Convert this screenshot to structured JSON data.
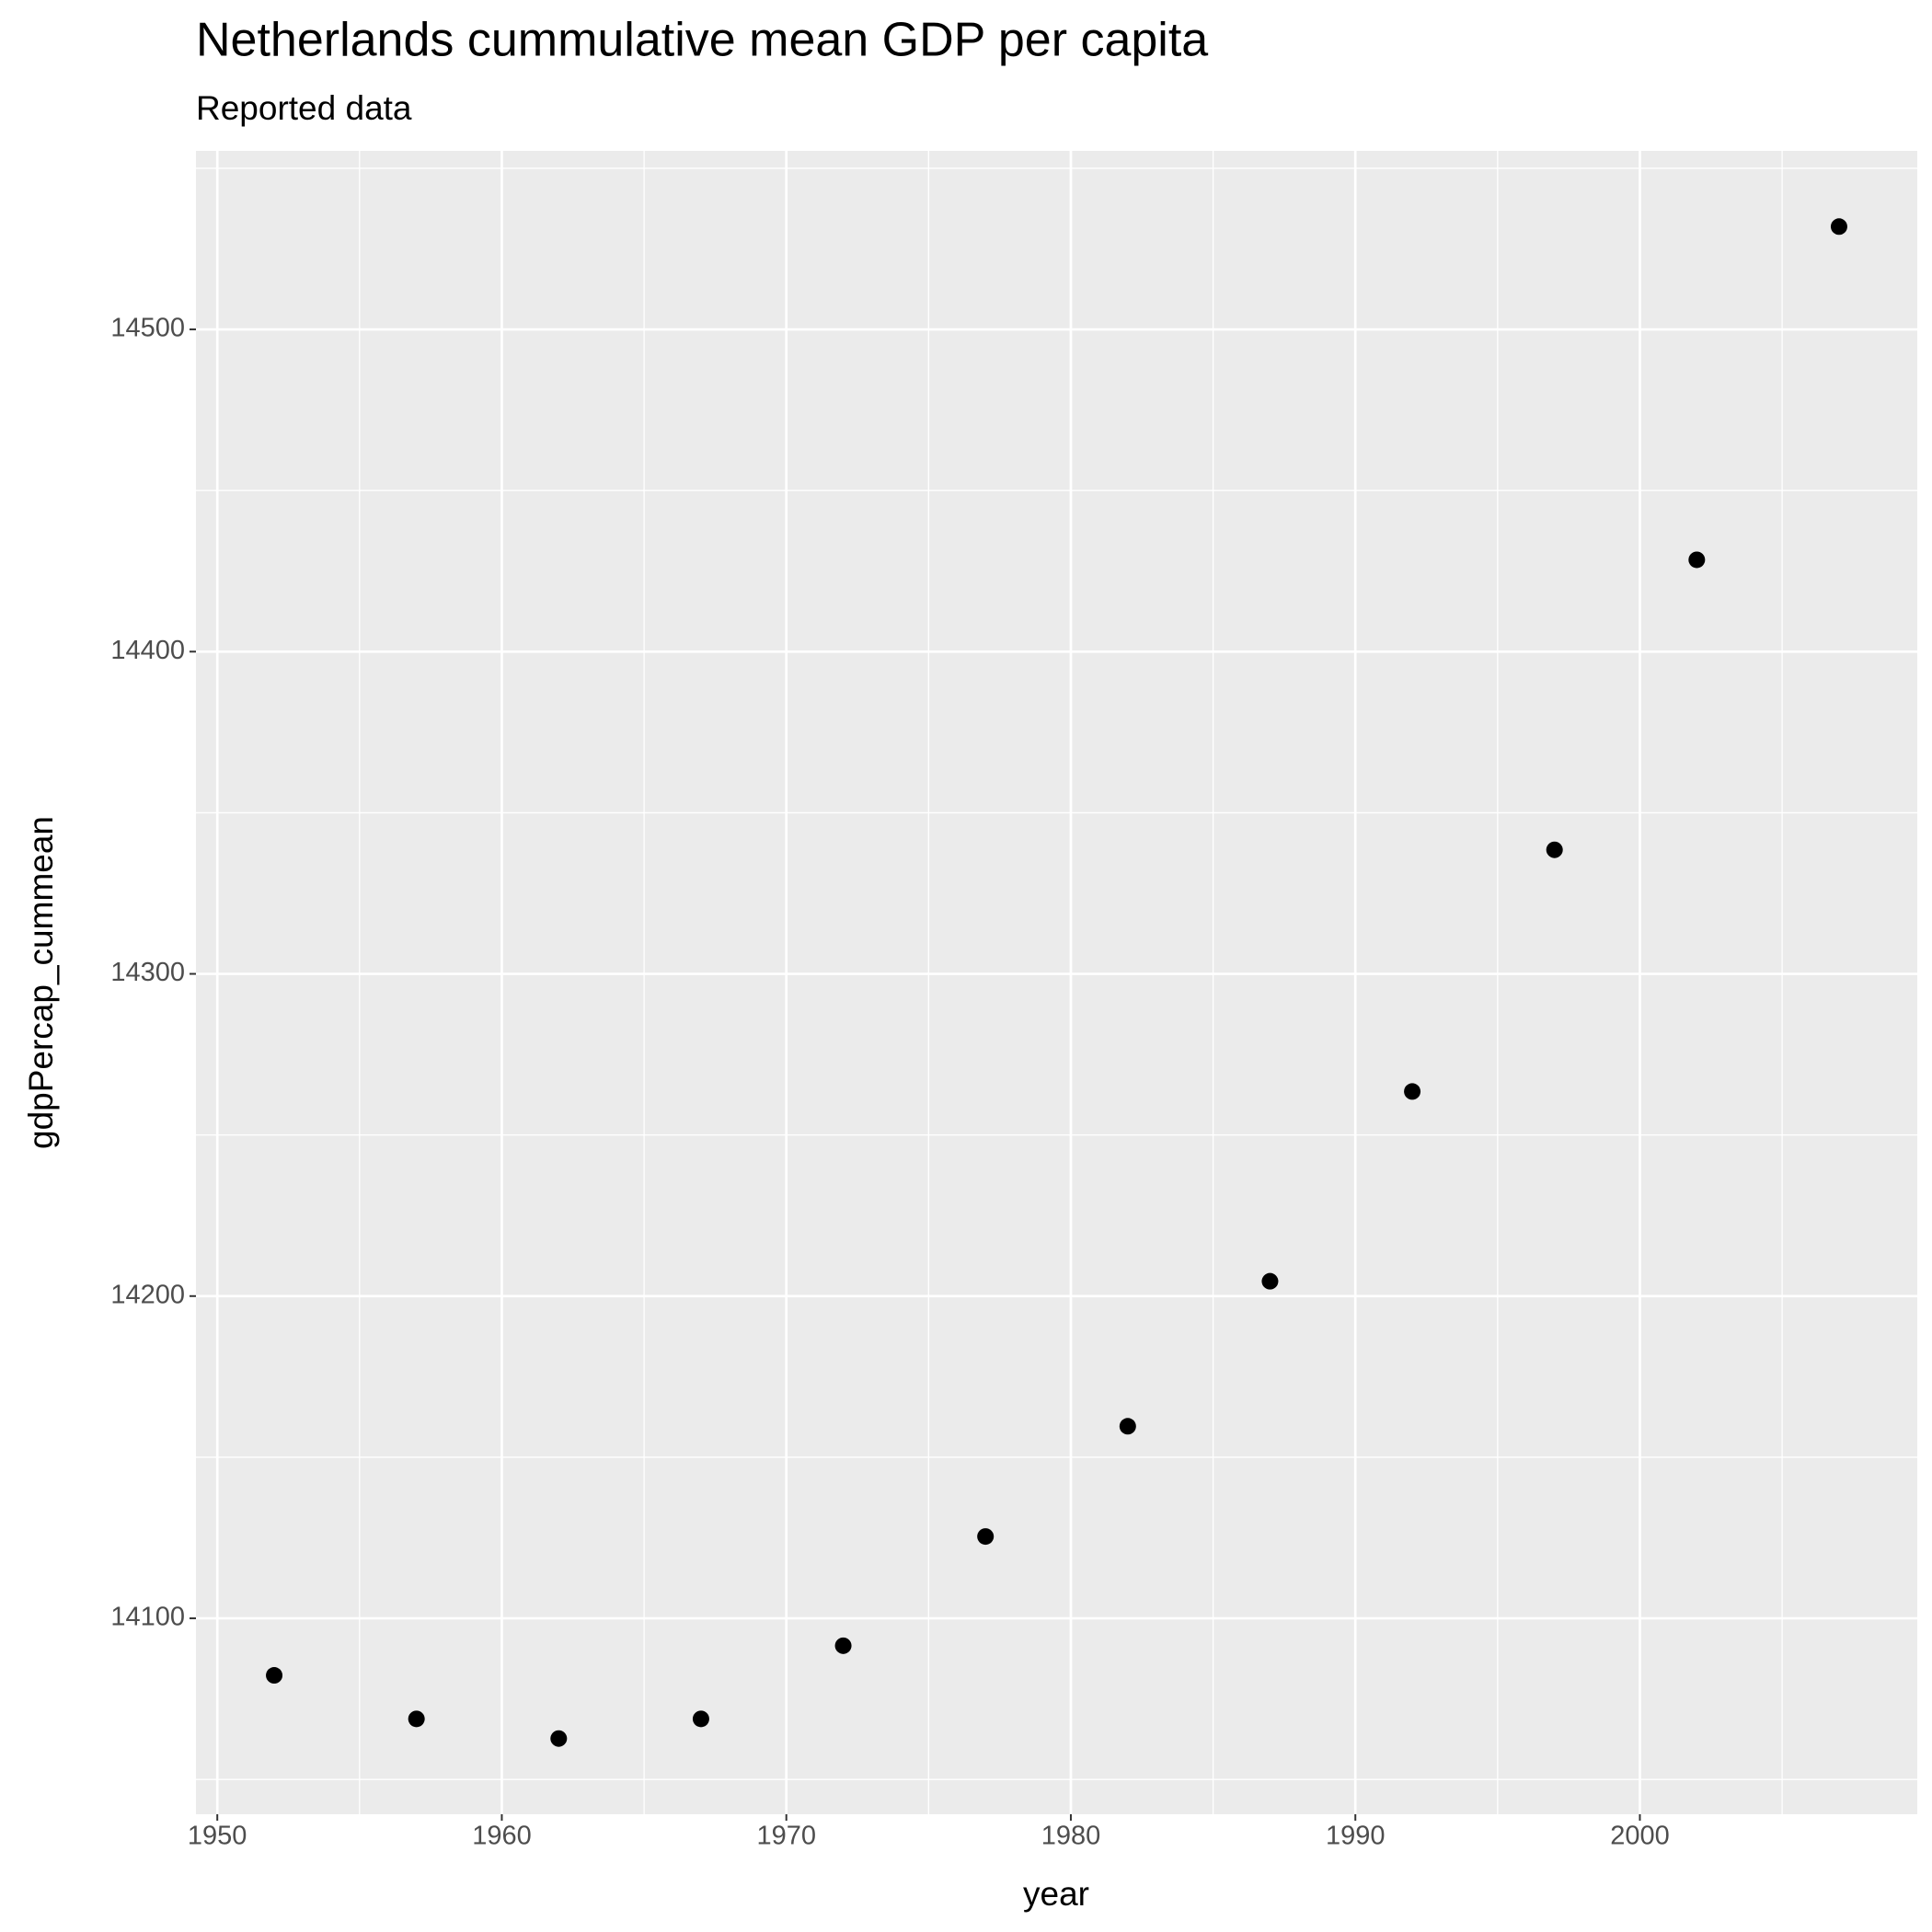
{
  "chart_data": {
    "type": "scatter",
    "title": "Netherlands  cummulative mean GDP per capita",
    "subtitle": "Reported data",
    "x_label": "year",
    "y_label": "gdpPercap_cummean",
    "x": [
      1952,
      1957,
      1962,
      1967,
      1972,
      1977,
      1982,
      1987,
      1992,
      1997,
      2002,
      2007
    ],
    "values": [
      14082.3,
      14068.8,
      14062.7,
      14068.8,
      14091.5,
      14125.4,
      14159.6,
      14204.6,
      14263.5,
      14338.5,
      14428.5,
      14531.9
    ],
    "color": "#000000",
    "xlim": [
      1949.25,
      2009.75
    ],
    "xticks": [
      1950,
      1960,
      1970,
      1980,
      1990,
      2000
    ],
    "ylim": [
      14039.2,
      14555.4
    ],
    "yticks": [
      14100,
      14200,
      14300,
      14400,
      14500
    ],
    "grid": true
  }
}
